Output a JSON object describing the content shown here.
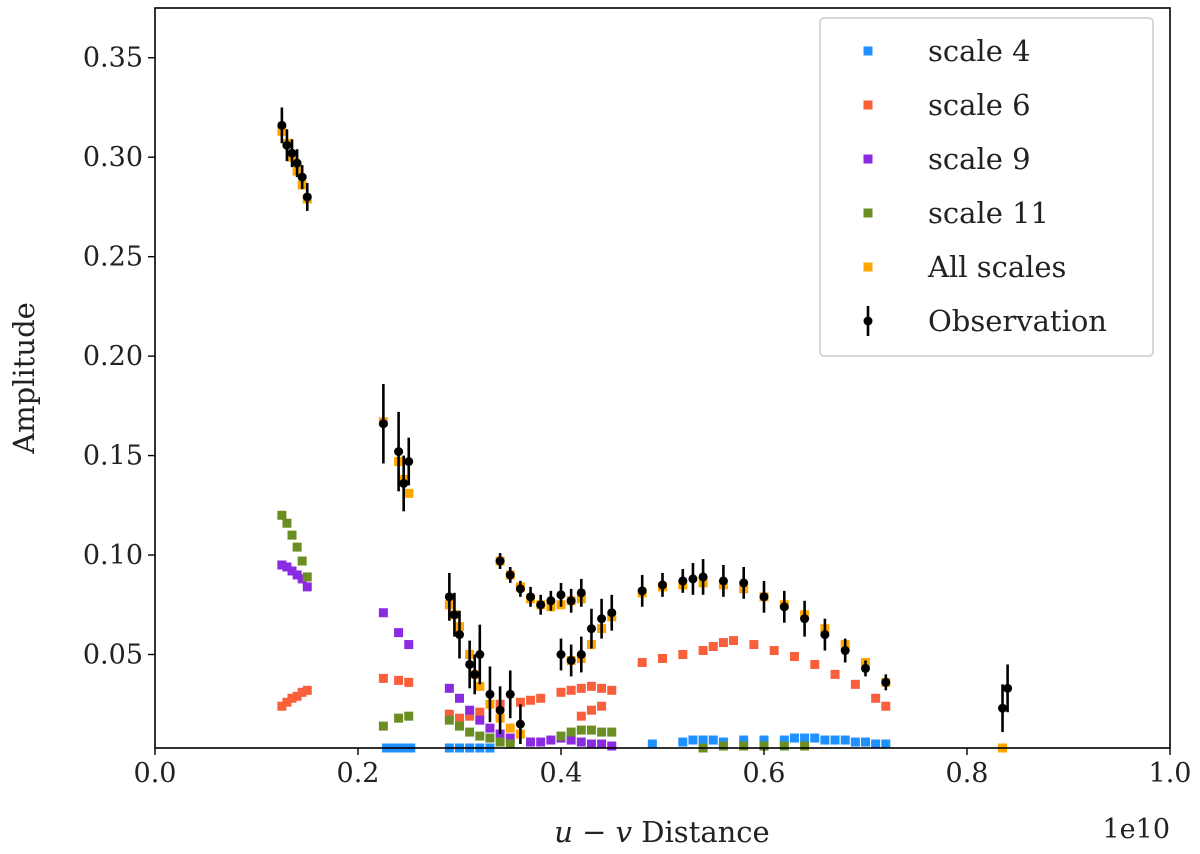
{
  "chart_data": {
    "type": "scatter",
    "xlabel_italic": "u − v",
    "xlabel_rest": " Distance",
    "ylabel": "Amplitude",
    "x_offset_text": "1e10",
    "xlim": [
      0.0,
      1.0
    ],
    "ylim": [
      0.003,
      0.375
    ],
    "xticks": [
      0.0,
      0.2,
      0.4,
      0.6,
      0.8,
      1.0
    ],
    "xtick_labels": [
      "0.0",
      "0.2",
      "0.4",
      "0.6",
      "0.8",
      "1.0"
    ],
    "yticks": [
      0.05,
      0.1,
      0.15,
      0.2,
      0.25,
      0.3,
      0.35
    ],
    "ytick_labels": [
      "0.05",
      "0.10",
      "0.15",
      "0.20",
      "0.25",
      "0.30",
      "0.35"
    ],
    "legend_position": "upper-right",
    "series": [
      {
        "name": "scale 4",
        "color": "#1E90FF",
        "marker": "square",
        "points": [
          [
            0.228,
            0.003
          ],
          [
            0.232,
            0.003
          ],
          [
            0.24,
            0.003
          ],
          [
            0.248,
            0.003
          ],
          [
            0.252,
            0.003
          ],
          [
            0.29,
            0.003
          ],
          [
            0.3,
            0.003
          ],
          [
            0.31,
            0.003
          ],
          [
            0.32,
            0.003
          ],
          [
            0.33,
            0.003
          ],
          [
            0.49,
            0.005
          ],
          [
            0.52,
            0.006
          ],
          [
            0.53,
            0.007
          ],
          [
            0.54,
            0.007
          ],
          [
            0.55,
            0.007
          ],
          [
            0.56,
            0.006
          ],
          [
            0.58,
            0.007
          ],
          [
            0.6,
            0.007
          ],
          [
            0.62,
            0.007
          ],
          [
            0.63,
            0.008
          ],
          [
            0.64,
            0.008
          ],
          [
            0.65,
            0.008
          ],
          [
            0.66,
            0.007
          ],
          [
            0.67,
            0.007
          ],
          [
            0.68,
            0.007
          ],
          [
            0.69,
            0.006
          ],
          [
            0.7,
            0.006
          ],
          [
            0.71,
            0.005
          ],
          [
            0.72,
            0.005
          ]
        ]
      },
      {
        "name": "scale 6",
        "color": "#FA5F3C",
        "marker": "square",
        "points": [
          [
            0.125,
            0.024
          ],
          [
            0.13,
            0.026
          ],
          [
            0.135,
            0.028
          ],
          [
            0.14,
            0.029
          ],
          [
            0.145,
            0.031
          ],
          [
            0.15,
            0.032
          ],
          [
            0.225,
            0.038
          ],
          [
            0.24,
            0.037
          ],
          [
            0.25,
            0.036
          ],
          [
            0.29,
            0.02
          ],
          [
            0.3,
            0.018
          ],
          [
            0.31,
            0.019
          ],
          [
            0.32,
            0.021
          ],
          [
            0.34,
            0.025
          ],
          [
            0.36,
            0.026
          ],
          [
            0.37,
            0.027
          ],
          [
            0.38,
            0.028
          ],
          [
            0.4,
            0.031
          ],
          [
            0.41,
            0.032
          ],
          [
            0.42,
            0.033
          ],
          [
            0.43,
            0.034
          ],
          [
            0.44,
            0.033
          ],
          [
            0.45,
            0.032
          ],
          [
            0.42,
            0.019
          ],
          [
            0.43,
            0.022
          ],
          [
            0.44,
            0.024
          ],
          [
            0.48,
            0.046
          ],
          [
            0.5,
            0.048
          ],
          [
            0.52,
            0.05
          ],
          [
            0.54,
            0.052
          ],
          [
            0.55,
            0.054
          ],
          [
            0.56,
            0.056
          ],
          [
            0.57,
            0.057
          ],
          [
            0.59,
            0.055
          ],
          [
            0.61,
            0.052
          ],
          [
            0.63,
            0.049
          ],
          [
            0.65,
            0.045
          ],
          [
            0.67,
            0.04
          ],
          [
            0.69,
            0.035
          ],
          [
            0.71,
            0.028
          ],
          [
            0.72,
            0.024
          ]
        ]
      },
      {
        "name": "scale 9",
        "color": "#8A2BE2",
        "marker": "square",
        "points": [
          [
            0.125,
            0.095
          ],
          [
            0.13,
            0.094
          ],
          [
            0.135,
            0.092
          ],
          [
            0.14,
            0.09
          ],
          [
            0.145,
            0.088
          ],
          [
            0.15,
            0.084
          ],
          [
            0.225,
            0.071
          ],
          [
            0.24,
            0.061
          ],
          [
            0.25,
            0.055
          ],
          [
            0.29,
            0.033
          ],
          [
            0.3,
            0.028
          ],
          [
            0.31,
            0.022
          ],
          [
            0.32,
            0.017
          ],
          [
            0.33,
            0.013
          ],
          [
            0.34,
            0.01
          ],
          [
            0.35,
            0.008
          ],
          [
            0.37,
            0.006
          ],
          [
            0.38,
            0.006
          ],
          [
            0.39,
            0.007
          ],
          [
            0.4,
            0.008
          ],
          [
            0.41,
            0.007
          ],
          [
            0.42,
            0.006
          ],
          [
            0.43,
            0.005
          ],
          [
            0.44,
            0.005
          ],
          [
            0.45,
            0.004
          ]
        ]
      },
      {
        "name": "scale 11",
        "color": "#6B8E23",
        "marker": "square",
        "points": [
          [
            0.125,
            0.12
          ],
          [
            0.13,
            0.116
          ],
          [
            0.135,
            0.11
          ],
          [
            0.14,
            0.104
          ],
          [
            0.145,
            0.097
          ],
          [
            0.15,
            0.089
          ],
          [
            0.225,
            0.014
          ],
          [
            0.24,
            0.018
          ],
          [
            0.25,
            0.019
          ],
          [
            0.29,
            0.017
          ],
          [
            0.3,
            0.014
          ],
          [
            0.31,
            0.011
          ],
          [
            0.32,
            0.009
          ],
          [
            0.33,
            0.008
          ],
          [
            0.34,
            0.006
          ],
          [
            0.35,
            0.005
          ],
          [
            0.4,
            0.009
          ],
          [
            0.41,
            0.011
          ],
          [
            0.42,
            0.012
          ],
          [
            0.43,
            0.012
          ],
          [
            0.44,
            0.011
          ],
          [
            0.45,
            0.011
          ],
          [
            0.54,
            0.003
          ],
          [
            0.56,
            0.004
          ],
          [
            0.58,
            0.004
          ],
          [
            0.6,
            0.004
          ],
          [
            0.62,
            0.004
          ],
          [
            0.64,
            0.004
          ]
        ]
      },
      {
        "name": "All scales",
        "color": "#FFA500",
        "marker": "square",
        "points": [
          [
            0.125,
            0.313
          ],
          [
            0.13,
            0.307
          ],
          [
            0.135,
            0.3
          ],
          [
            0.14,
            0.293
          ],
          [
            0.145,
            0.286
          ],
          [
            0.15,
            0.279
          ],
          [
            0.225,
            0.167
          ],
          [
            0.24,
            0.147
          ],
          [
            0.245,
            0.138
          ],
          [
            0.25,
            0.131
          ],
          [
            0.29,
            0.075
          ],
          [
            0.295,
            0.07
          ],
          [
            0.3,
            0.064
          ],
          [
            0.31,
            0.05
          ],
          [
            0.315,
            0.04
          ],
          [
            0.32,
            0.034
          ],
          [
            0.33,
            0.025
          ],
          [
            0.34,
            0.018
          ],
          [
            0.35,
            0.013
          ],
          [
            0.36,
            0.01
          ],
          [
            0.34,
            0.097
          ],
          [
            0.35,
            0.09
          ],
          [
            0.36,
            0.084
          ],
          [
            0.37,
            0.078
          ],
          [
            0.38,
            0.075
          ],
          [
            0.39,
            0.074
          ],
          [
            0.4,
            0.075
          ],
          [
            0.41,
            0.077
          ],
          [
            0.42,
            0.078
          ],
          [
            0.41,
            0.047
          ],
          [
            0.42,
            0.048
          ],
          [
            0.43,
            0.055
          ],
          [
            0.44,
            0.063
          ],
          [
            0.45,
            0.069
          ],
          [
            0.48,
            0.081
          ],
          [
            0.5,
            0.084
          ],
          [
            0.52,
            0.085
          ],
          [
            0.54,
            0.086
          ],
          [
            0.56,
            0.085
          ],
          [
            0.58,
            0.083
          ],
          [
            0.6,
            0.079
          ],
          [
            0.62,
            0.075
          ],
          [
            0.64,
            0.07
          ],
          [
            0.66,
            0.063
          ],
          [
            0.68,
            0.055
          ],
          [
            0.7,
            0.046
          ],
          [
            0.72,
            0.036
          ],
          [
            0.835,
            0.003
          ]
        ]
      },
      {
        "name": "Observation",
        "color": "#000000",
        "marker": "errorbar",
        "points": [
          [
            0.125,
            0.316,
            0.009
          ],
          [
            0.13,
            0.306,
            0.008
          ],
          [
            0.135,
            0.302,
            0.007
          ],
          [
            0.14,
            0.297,
            0.007
          ],
          [
            0.145,
            0.29,
            0.006
          ],
          [
            0.15,
            0.28,
            0.007
          ],
          [
            0.225,
            0.166,
            0.02
          ],
          [
            0.24,
            0.152,
            0.02
          ],
          [
            0.245,
            0.136,
            0.014
          ],
          [
            0.25,
            0.147,
            0.012
          ],
          [
            0.29,
            0.079,
            0.012
          ],
          [
            0.295,
            0.07,
            0.011
          ],
          [
            0.3,
            0.06,
            0.012
          ],
          [
            0.31,
            0.045,
            0.012
          ],
          [
            0.315,
            0.04,
            0.01
          ],
          [
            0.32,
            0.05,
            0.015
          ],
          [
            0.33,
            0.03,
            0.014
          ],
          [
            0.34,
            0.022,
            0.012
          ],
          [
            0.35,
            0.03,
            0.012
          ],
          [
            0.36,
            0.015,
            0.01
          ],
          [
            0.34,
            0.097,
            0.004
          ],
          [
            0.35,
            0.09,
            0.004
          ],
          [
            0.36,
            0.083,
            0.004
          ],
          [
            0.37,
            0.079,
            0.005
          ],
          [
            0.38,
            0.075,
            0.005
          ],
          [
            0.39,
            0.077,
            0.005
          ],
          [
            0.4,
            0.08,
            0.006
          ],
          [
            0.41,
            0.077,
            0.006
          ],
          [
            0.42,
            0.081,
            0.007
          ],
          [
            0.4,
            0.05,
            0.008
          ],
          [
            0.41,
            0.047,
            0.008
          ],
          [
            0.42,
            0.05,
            0.009
          ],
          [
            0.43,
            0.063,
            0.01
          ],
          [
            0.44,
            0.068,
            0.01
          ],
          [
            0.45,
            0.071,
            0.009
          ],
          [
            0.48,
            0.082,
            0.008
          ],
          [
            0.5,
            0.085,
            0.006
          ],
          [
            0.52,
            0.087,
            0.006
          ],
          [
            0.53,
            0.088,
            0.008
          ],
          [
            0.54,
            0.089,
            0.009
          ],
          [
            0.56,
            0.087,
            0.008
          ],
          [
            0.58,
            0.086,
            0.008
          ],
          [
            0.6,
            0.079,
            0.008
          ],
          [
            0.62,
            0.074,
            0.008
          ],
          [
            0.64,
            0.068,
            0.009
          ],
          [
            0.66,
            0.06,
            0.008
          ],
          [
            0.68,
            0.052,
            0.006
          ],
          [
            0.7,
            0.043,
            0.004
          ],
          [
            0.72,
            0.036,
            0.004
          ],
          [
            0.835,
            0.023,
            0.012
          ],
          [
            0.84,
            0.033,
            0.012
          ]
        ]
      }
    ]
  }
}
